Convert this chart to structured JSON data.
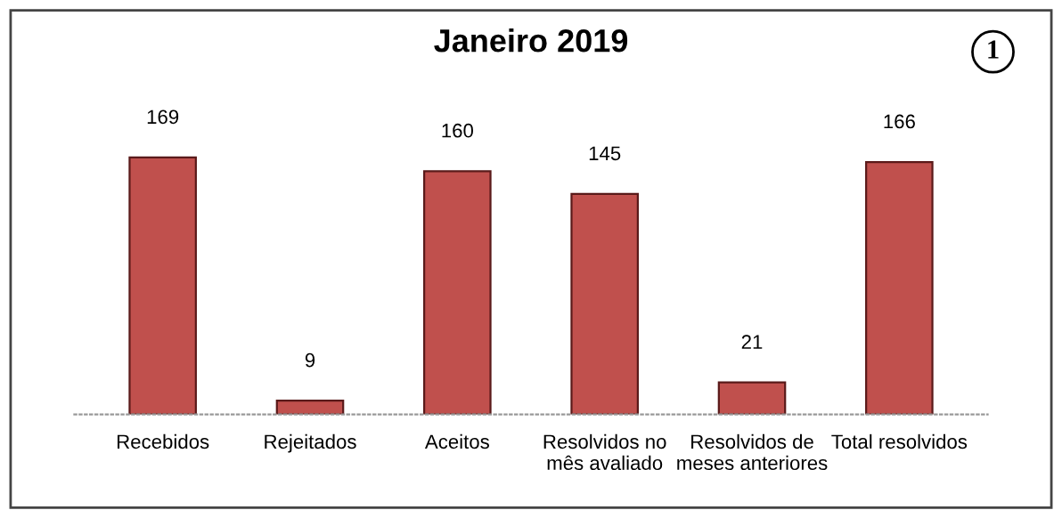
{
  "chart_data": {
    "type": "bar",
    "title": "Janeiro 2019",
    "categories": [
      "Recebidos",
      "Rejeitados",
      "Aceitos",
      "Resolvidos no\nmês avaliado",
      "Resolvidos de\nmeses anteriores",
      "Total resolvidos"
    ],
    "values": [
      169,
      9,
      160,
      145,
      21,
      166
    ],
    "color": "#c0504d",
    "data_labels": true,
    "grid": false,
    "legend": false,
    "annotations": [
      "1"
    ]
  }
}
